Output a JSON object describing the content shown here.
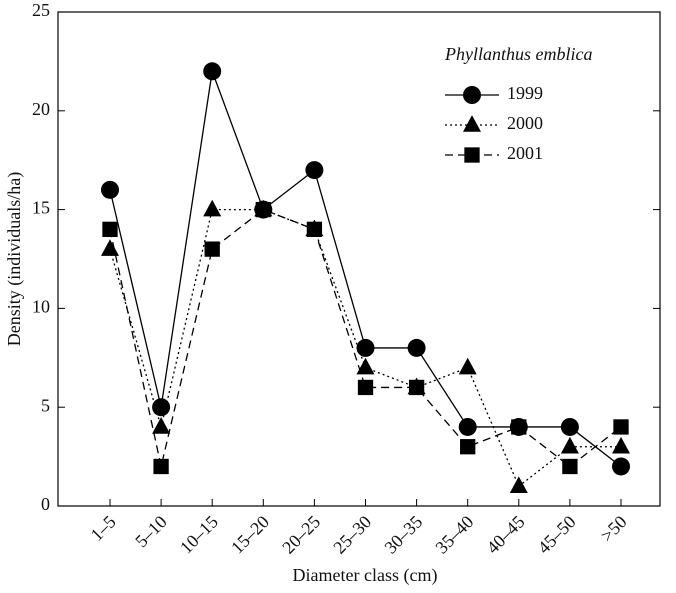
{
  "chart_data": {
    "type": "line",
    "legend_title": "Phyllanthus emblica",
    "x_label": "Diameter class (cm)",
    "y_label": "Density (individuals/ha)",
    "categories": [
      "1–5",
      "5–10",
      "10–15",
      "15–20",
      "20–25",
      "25–30",
      "30–35",
      "35–40",
      "40–45",
      "45–50",
      ">50"
    ],
    "series": [
      {
        "name": "1999",
        "color": "#000000",
        "marker": "circle",
        "dash": "solid",
        "values": [
          16,
          5,
          22,
          15,
          17,
          8,
          8,
          4,
          4,
          4,
          2
        ]
      },
      {
        "name": "2000",
        "color": "#000000",
        "marker": "triangle",
        "dash": "dotted",
        "values": [
          13,
          4,
          15,
          15,
          14,
          7,
          6,
          7,
          1,
          3,
          3
        ]
      },
      {
        "name": "2001",
        "color": "#000000",
        "marker": "square",
        "dash": "dashed",
        "values": [
          14,
          2,
          13,
          15,
          14,
          6,
          6,
          3,
          4,
          2,
          4
        ]
      }
    ],
    "ylim": [
      0,
      25
    ],
    "yticks": [
      0,
      5,
      10,
      15,
      20,
      25
    ],
    "legend": "upper right"
  }
}
